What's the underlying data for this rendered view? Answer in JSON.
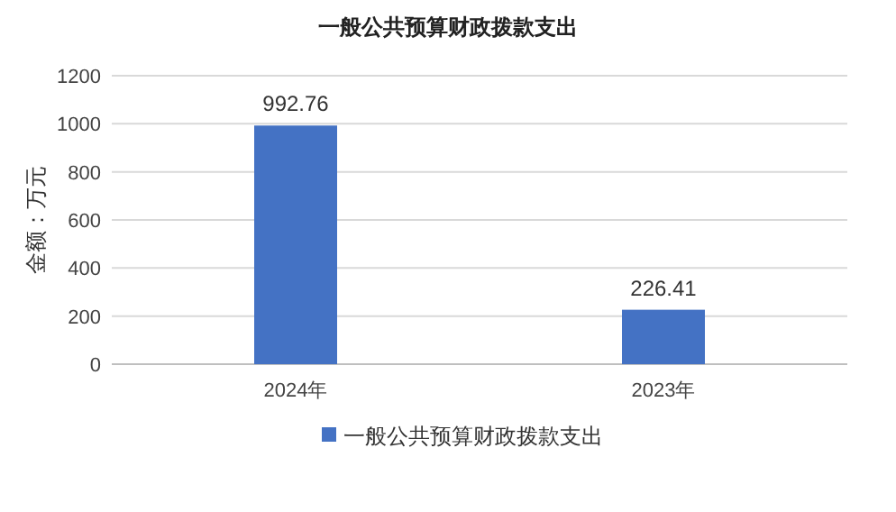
{
  "chart_data": {
    "type": "bar",
    "title": "一般公共预算财政拨款支出",
    "ylabel": "金额：万元",
    "categories": [
      "2024年",
      "2023年"
    ],
    "series": [
      {
        "name": "一般公共预算财政拨款支出",
        "color": "#4472c4",
        "values": [
          992.76,
          226.41
        ]
      }
    ],
    "ylim": [
      0,
      1200
    ],
    "yticks": [
      0,
      200,
      400,
      600,
      800,
      1000,
      1200
    ],
    "grid": "y",
    "legend": "bottom",
    "data_labels": true
  }
}
